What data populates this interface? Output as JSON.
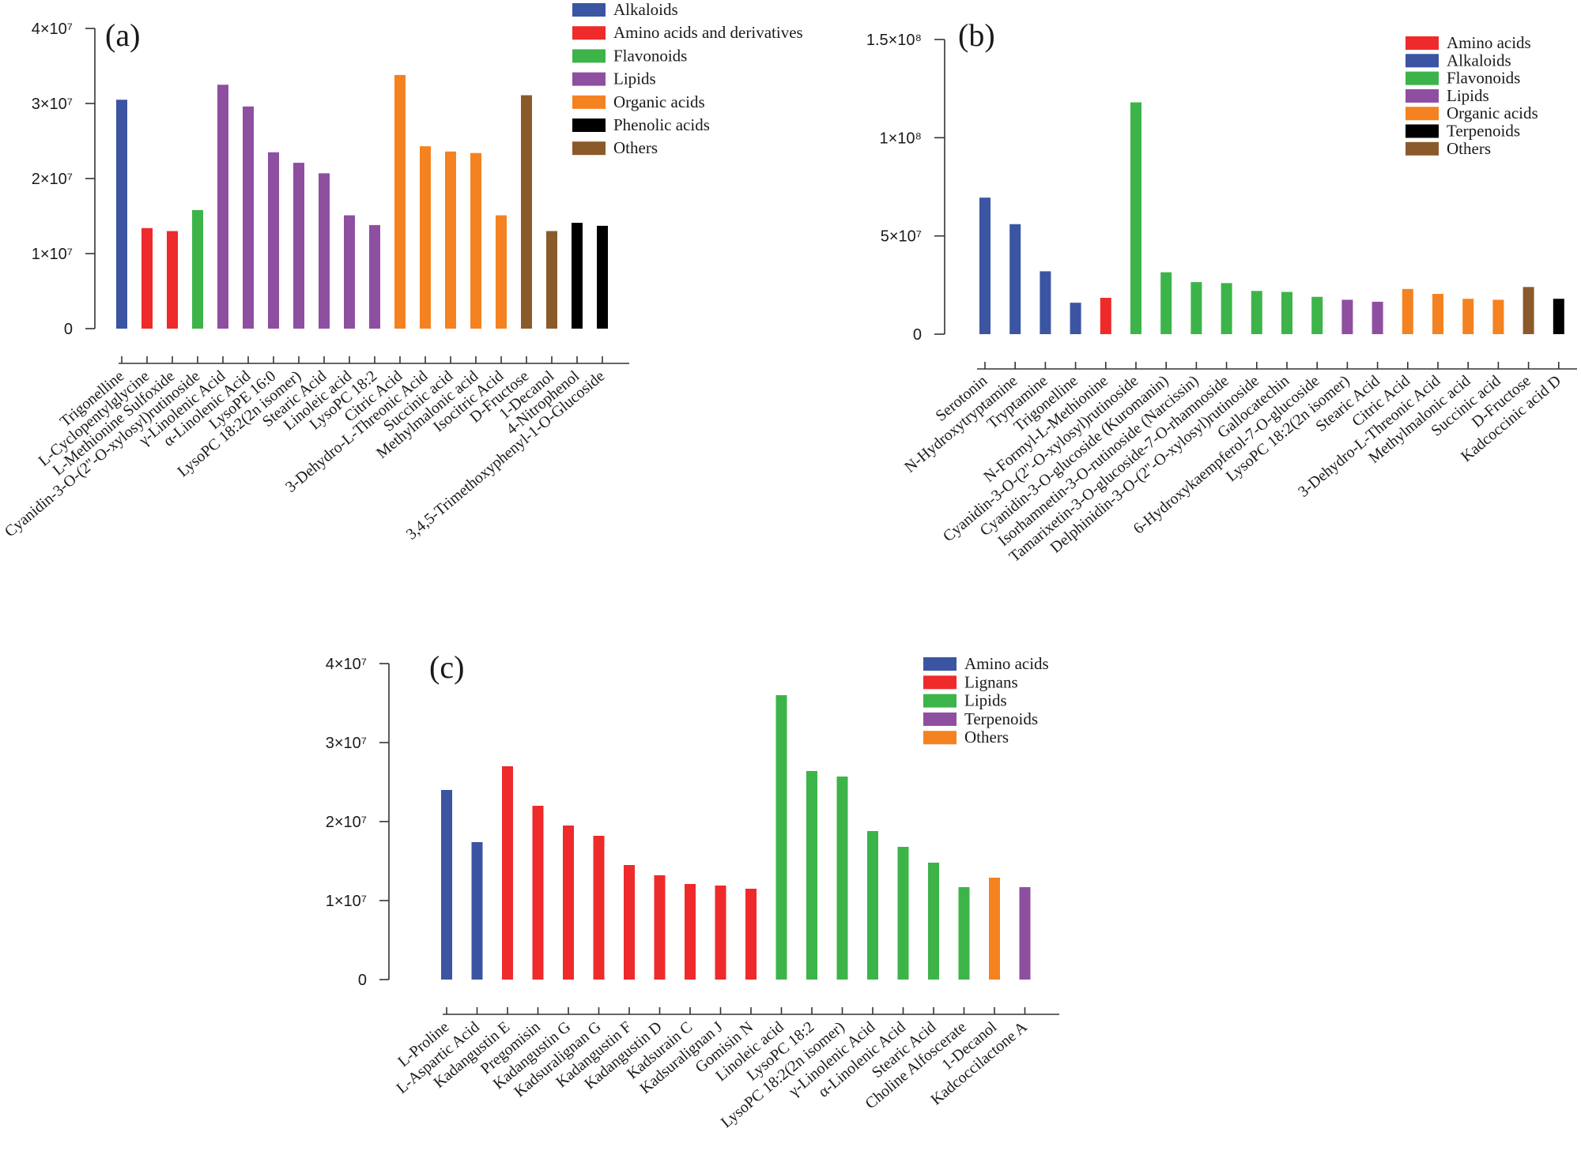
{
  "chart_data": [
    {
      "panel": "(a)",
      "type": "bar",
      "ylim": [
        0,
        40000000
      ],
      "yticks": [
        {
          "value": 0,
          "label": "0"
        },
        {
          "value": 10000000,
          "label": "1×10⁷"
        },
        {
          "value": 20000000,
          "label": "2×10⁷"
        },
        {
          "value": 30000000,
          "label": "3×10⁷"
        },
        {
          "value": 40000000,
          "label": "4×10⁷"
        }
      ],
      "legend": [
        {
          "name": "Alkaloids",
          "color": "#3b55a3"
        },
        {
          "name": "Amino acids and derivatives",
          "color": "#ee2a2b"
        },
        {
          "name": "Flavonoids",
          "color": "#3db449"
        },
        {
          "name": "Lipids",
          "color": "#8e4fa1"
        },
        {
          "name": "Organic acids",
          "color": "#f58220"
        },
        {
          "name": "Phenolic acids",
          "color": "#000000"
        },
        {
          "name": "Others",
          "color": "#8b5a2b"
        }
      ],
      "bars": [
        {
          "label": "Trigonelline",
          "value": 30500000,
          "group": "Alkaloids"
        },
        {
          "label": "L-Cyclopentylglycine",
          "value": 13400000,
          "group": "Amino acids and derivatives"
        },
        {
          "label": "L-Methionine Sulfoxide",
          "value": 13000000,
          "group": "Amino acids and derivatives"
        },
        {
          "label": "Cyanidin-3-O-(2''-O-xylosyl)rutinoside",
          "value": 15800000,
          "group": "Flavonoids"
        },
        {
          "label": "γ-Linolenic Acid",
          "value": 32500000,
          "group": "Lipids"
        },
        {
          "label": "α-Linolenic Acid",
          "value": 29600000,
          "group": "Lipids"
        },
        {
          "label": "LysoPE 16:0",
          "value": 23500000,
          "group": "Lipids"
        },
        {
          "label": "LysoPC 18:2(2n isomer)",
          "value": 22100000,
          "group": "Lipids"
        },
        {
          "label": "Stearic Acid",
          "value": 20700000,
          "group": "Lipids"
        },
        {
          "label": "Linoleic acid",
          "value": 15100000,
          "group": "Lipids"
        },
        {
          "label": "LysoPC 18:2",
          "value": 13800000,
          "group": "Lipids"
        },
        {
          "label": "Citric Acid",
          "value": 33800000,
          "group": "Organic acids"
        },
        {
          "label": "3-Dehydro-L-Threonic Acid",
          "value": 24300000,
          "group": "Organic acids"
        },
        {
          "label": "Succinic acid",
          "value": 23600000,
          "group": "Organic acids"
        },
        {
          "label": "Methylmalonic acid",
          "value": 23400000,
          "group": "Organic acids"
        },
        {
          "label": "Isocitric Acid",
          "value": 15100000,
          "group": "Organic acids"
        },
        {
          "label": "D-Fructose",
          "value": 31100000,
          "group": "Others"
        },
        {
          "label": "1-Decanol",
          "value": 13000000,
          "group": "Others"
        },
        {
          "label": "4-Nitrophenol",
          "value": 14100000,
          "group": "Phenolic acids"
        },
        {
          "label": "3,4,5-Trimethoxyphenyl-1-O-Glucoside",
          "value": 13700000,
          "group": "Phenolic acids"
        }
      ]
    },
    {
      "panel": "(b)",
      "type": "bar",
      "ylim": [
        0,
        150000000
      ],
      "yticks": [
        {
          "value": 0,
          "label": "0"
        },
        {
          "value": 50000000,
          "label": "5×10⁷"
        },
        {
          "value": 100000000,
          "label": "1×10⁸"
        },
        {
          "value": 150000000,
          "label": "1.5×10⁸"
        }
      ],
      "legend": [
        {
          "name": "Amino acids",
          "color": "#ee2a2b"
        },
        {
          "name": "Alkaloids",
          "color": "#3b55a3"
        },
        {
          "name": "Flavonoids",
          "color": "#3db449"
        },
        {
          "name": "Lipids",
          "color": "#8e4fa1"
        },
        {
          "name": "Organic acids",
          "color": "#f58220"
        },
        {
          "name": "Terpenoids",
          "color": "#000000"
        },
        {
          "name": "Others",
          "color": "#8b5a2b"
        }
      ],
      "bars": [
        {
          "label": "Serotonin",
          "value": 69500000,
          "group": "Alkaloids"
        },
        {
          "label": "N-Hydroxytryptamine",
          "value": 56000000,
          "group": "Alkaloids"
        },
        {
          "label": "Tryptamine",
          "value": 32000000,
          "group": "Alkaloids"
        },
        {
          "label": "Trigonelline",
          "value": 16000000,
          "group": "Alkaloids"
        },
        {
          "label": "N-Formyl-L-Methionine",
          "value": 18500000,
          "group": "Amino acids"
        },
        {
          "label": "Cyanidin-3-O-(2''-O-xylosyl)rutinoside",
          "value": 118000000,
          "group": "Flavonoids"
        },
        {
          "label": "Cyanidin-3-O-glucoside (Kuromanin)",
          "value": 31500000,
          "group": "Flavonoids"
        },
        {
          "label": "Isorhamnetin-3-O-rutinoside (Narcissin)",
          "value": 26500000,
          "group": "Flavonoids"
        },
        {
          "label": "Tamarixetin-3-O-glucoside-7-O-rhamnoside",
          "value": 26000000,
          "group": "Flavonoids"
        },
        {
          "label": "Delphinidin-3-O-(2''-O-xylosyl)rutinoside",
          "value": 22000000,
          "group": "Flavonoids"
        },
        {
          "label": "Gallocatechin",
          "value": 21500000,
          "group": "Flavonoids"
        },
        {
          "label": "6-Hydroxykaempferol-7-O-glucoside",
          "value": 19000000,
          "group": "Flavonoids"
        },
        {
          "label": "LysoPC 18:2(2n isomer)",
          "value": 17500000,
          "group": "Lipids"
        },
        {
          "label": "Stearic Acid",
          "value": 16500000,
          "group": "Lipids"
        },
        {
          "label": "Citric Acid",
          "value": 23000000,
          "group": "Organic acids"
        },
        {
          "label": "3-Dehydro-L-Threonic Acid",
          "value": 20500000,
          "group": "Organic acids"
        },
        {
          "label": "Methylmalonic acid",
          "value": 18000000,
          "group": "Organic acids"
        },
        {
          "label": "Succinic acid",
          "value": 17500000,
          "group": "Organic acids"
        },
        {
          "label": "D-Fructose",
          "value": 24000000,
          "group": "Others"
        },
        {
          "label": "Kadcoccinic acid D",
          "value": 18000000,
          "group": "Terpenoids"
        }
      ]
    },
    {
      "panel": "(c)",
      "type": "bar",
      "ylim": [
        0,
        40000000
      ],
      "yticks": [
        {
          "value": 0,
          "label": "0"
        },
        {
          "value": 10000000,
          "label": "1×10⁷"
        },
        {
          "value": 20000000,
          "label": "2×10⁷"
        },
        {
          "value": 30000000,
          "label": "3×10⁷"
        },
        {
          "value": 40000000,
          "label": "4×10⁷"
        }
      ],
      "legend": [
        {
          "name": "Amino acids",
          "color": "#3b55a3"
        },
        {
          "name": "Lignans",
          "color": "#ee2a2b"
        },
        {
          "name": "Lipids",
          "color": "#3db449"
        },
        {
          "name": "Terpenoids",
          "color": "#8e4fa1"
        },
        {
          "name": "Others",
          "color": "#f58220"
        }
      ],
      "bars": [
        {
          "label": "L-Proline",
          "value": 24000000,
          "group": "Amino acids"
        },
        {
          "label": "L-Aspartic Acid",
          "value": 17400000,
          "group": "Amino acids"
        },
        {
          "label": "Kadangustin E",
          "value": 27000000,
          "group": "Lignans"
        },
        {
          "label": "Pregomisin",
          "value": 22000000,
          "group": "Lignans"
        },
        {
          "label": "Kadangustin G",
          "value": 19500000,
          "group": "Lignans"
        },
        {
          "label": "Kadsuralignan G",
          "value": 18200000,
          "group": "Lignans"
        },
        {
          "label": "Kadangustin F",
          "value": 14500000,
          "group": "Lignans"
        },
        {
          "label": "Kadangustin D",
          "value": 13200000,
          "group": "Lignans"
        },
        {
          "label": "Kadsurain C",
          "value": 12100000,
          "group": "Lignans"
        },
        {
          "label": "Kadsuralignan J",
          "value": 11900000,
          "group": "Lignans"
        },
        {
          "label": "Gomisin N",
          "value": 11500000,
          "group": "Lignans"
        },
        {
          "label": "Linoleic acid",
          "value": 36000000,
          "group": "Lipids"
        },
        {
          "label": "LysoPC 18:2",
          "value": 26400000,
          "group": "Lipids"
        },
        {
          "label": "LysoPC 18:2(2n isomer)",
          "value": 25700000,
          "group": "Lipids"
        },
        {
          "label": "γ-Linolenic Acid",
          "value": 18800000,
          "group": "Lipids"
        },
        {
          "label": "α-Linolenic Acid",
          "value": 16800000,
          "group": "Lipids"
        },
        {
          "label": "Stearic Acid",
          "value": 14800000,
          "group": "Lipids"
        },
        {
          "label": "Choline Alfoscerate",
          "value": 11700000,
          "group": "Lipids"
        },
        {
          "label": "1-Decanol",
          "value": 12900000,
          "group": "Others"
        },
        {
          "label": "Kadcoccilactone A",
          "value": 11700000,
          "group": "Terpenoids"
        }
      ]
    }
  ]
}
